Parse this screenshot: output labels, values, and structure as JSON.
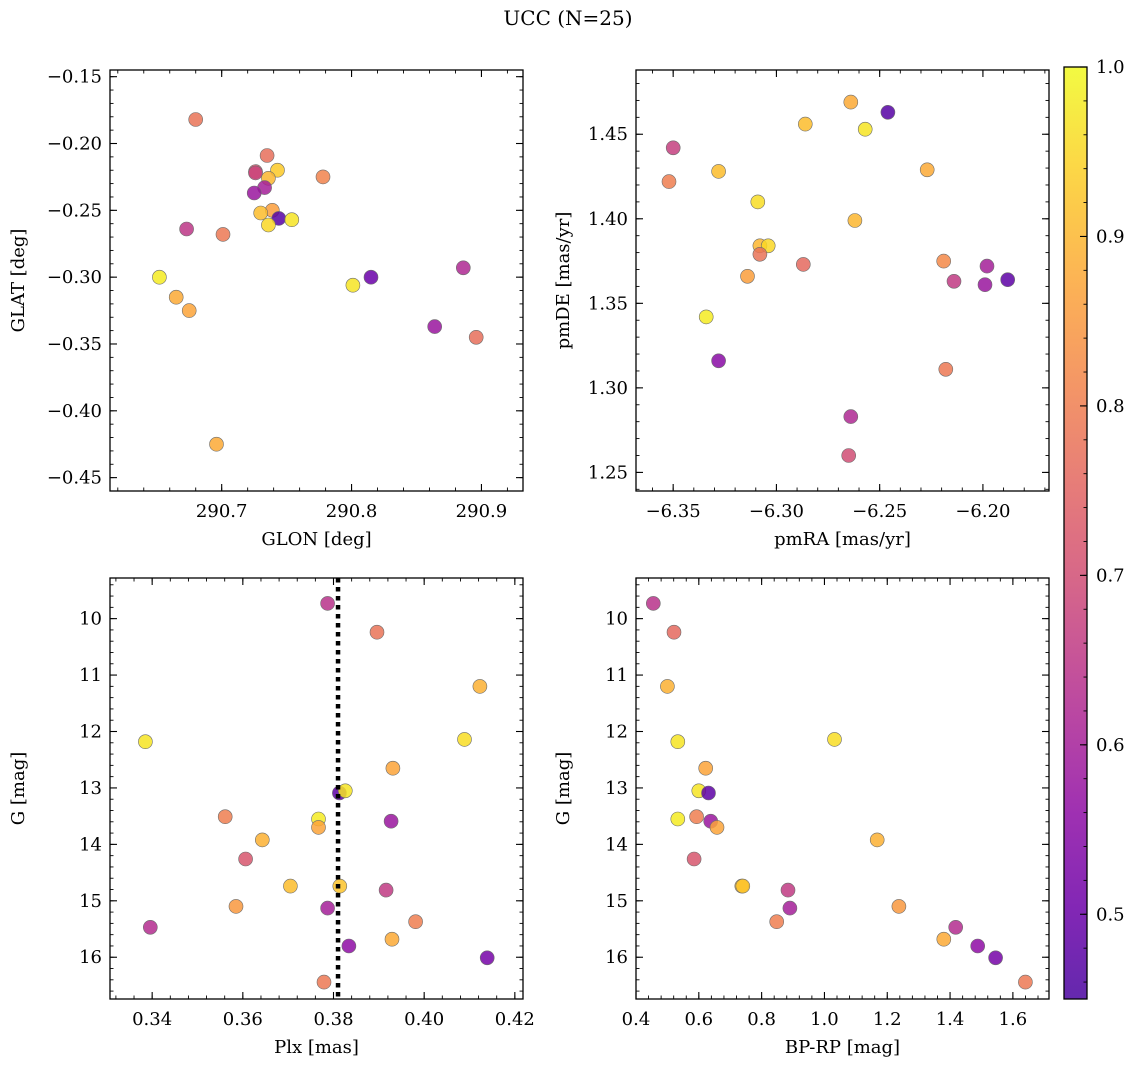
{
  "figure": {
    "title": "UCC (N=25)"
  },
  "colorbar": {
    "cmap": "plasma",
    "min": 0.45,
    "max": 1.0,
    "ticks": [
      0.5,
      0.6,
      0.7,
      0.8,
      0.9,
      1.0
    ],
    "tick_labels": [
      "0.5",
      "0.6",
      "0.7",
      "0.8",
      "0.9",
      "1.0"
    ]
  },
  "chart_data": [
    {
      "type": "scatter",
      "xlabel": "GLON [deg]",
      "ylabel": "GLAT [deg]",
      "xlim": [
        290.614,
        290.932
      ],
      "ylim": [
        -0.46,
        -0.145
      ],
      "y_inverted": false,
      "xticks": [
        290.7,
        290.8,
        290.9
      ],
      "xtick_labels": [
        "290.7",
        "290.8",
        "290.9"
      ],
      "yticks": [
        -0.45,
        -0.4,
        -0.35,
        -0.3,
        -0.25,
        -0.2,
        -0.15
      ],
      "ytick_labels": [
        "−0.45",
        "−0.40",
        "−0.35",
        "−0.30",
        "−0.25",
        "−0.20",
        "−0.15"
      ],
      "points": [
        {
          "x": 290.68,
          "y": -0.182,
          "c": 0.78
        },
        {
          "x": 290.735,
          "y": -0.209,
          "c": 0.77
        },
        {
          "x": 290.726,
          "y": -0.221,
          "c": 0.72
        },
        {
          "x": 290.726,
          "y": -0.222,
          "c": 0.68
        },
        {
          "x": 290.743,
          "y": -0.22,
          "c": 0.93
        },
        {
          "x": 290.778,
          "y": -0.225,
          "c": 0.81
        },
        {
          "x": 290.736,
          "y": -0.226,
          "c": 0.9
        },
        {
          "x": 290.733,
          "y": -0.233,
          "c": 0.6
        },
        {
          "x": 290.725,
          "y": -0.237,
          "c": 0.58
        },
        {
          "x": 290.739,
          "y": -0.25,
          "c": 0.86
        },
        {
          "x": 290.73,
          "y": -0.252,
          "c": 0.91
        },
        {
          "x": 290.744,
          "y": -0.256,
          "c": 0.47
        },
        {
          "x": 290.754,
          "y": -0.257,
          "c": 0.97
        },
        {
          "x": 290.736,
          "y": -0.261,
          "c": 0.95
        },
        {
          "x": 290.673,
          "y": -0.264,
          "c": 0.65
        },
        {
          "x": 290.701,
          "y": -0.268,
          "c": 0.79
        },
        {
          "x": 290.652,
          "y": -0.3,
          "c": 0.98
        },
        {
          "x": 290.815,
          "y": -0.3,
          "c": 0.5
        },
        {
          "x": 290.801,
          "y": -0.306,
          "c": 0.97
        },
        {
          "x": 290.886,
          "y": -0.293,
          "c": 0.62
        },
        {
          "x": 290.665,
          "y": -0.315,
          "c": 0.88
        },
        {
          "x": 290.675,
          "y": -0.325,
          "c": 0.87
        },
        {
          "x": 290.864,
          "y": -0.337,
          "c": 0.58
        },
        {
          "x": 290.896,
          "y": -0.345,
          "c": 0.77
        },
        {
          "x": 290.696,
          "y": -0.425,
          "c": 0.88
        }
      ]
    },
    {
      "type": "scatter",
      "xlabel": "pmRA [mas/yr]",
      "ylabel": "pmDE [mas/yr]",
      "xlim": [
        -6.368,
        -6.168
      ],
      "ylim": [
        1.239,
        1.488
      ],
      "y_inverted": false,
      "xticks": [
        -6.35,
        -6.3,
        -6.25,
        -6.2
      ],
      "xtick_labels": [
        "−6.35",
        "−6.30",
        "−6.25",
        "−6.20"
      ],
      "yticks": [
        1.25,
        1.3,
        1.35,
        1.4,
        1.45
      ],
      "ytick_labels": [
        "1.25",
        "1.30",
        "1.35",
        "1.40",
        "1.45"
      ],
      "points": [
        {
          "x": -6.264,
          "y": 1.469,
          "c": 0.88
        },
        {
          "x": -6.246,
          "y": 1.463,
          "c": 0.47
        },
        {
          "x": -6.286,
          "y": 1.456,
          "c": 0.91
        },
        {
          "x": -6.257,
          "y": 1.453,
          "c": 0.97
        },
        {
          "x": -6.35,
          "y": 1.442,
          "c": 0.67
        },
        {
          "x": -6.352,
          "y": 1.422,
          "c": 0.8
        },
        {
          "x": -6.328,
          "y": 1.428,
          "c": 0.91
        },
        {
          "x": -6.227,
          "y": 1.429,
          "c": 0.88
        },
        {
          "x": -6.309,
          "y": 1.41,
          "c": 0.96
        },
        {
          "x": -6.262,
          "y": 1.399,
          "c": 0.9
        },
        {
          "x": -6.308,
          "y": 1.384,
          "c": 0.9
        },
        {
          "x": -6.304,
          "y": 1.384,
          "c": 0.95
        },
        {
          "x": -6.308,
          "y": 1.379,
          "c": 0.78
        },
        {
          "x": -6.287,
          "y": 1.373,
          "c": 0.76
        },
        {
          "x": -6.219,
          "y": 1.375,
          "c": 0.82
        },
        {
          "x": -6.198,
          "y": 1.372,
          "c": 0.6
        },
        {
          "x": -6.314,
          "y": 1.366,
          "c": 0.86
        },
        {
          "x": -6.214,
          "y": 1.363,
          "c": 0.66
        },
        {
          "x": -6.199,
          "y": 1.361,
          "c": 0.58
        },
        {
          "x": -6.188,
          "y": 1.364,
          "c": 0.48
        },
        {
          "x": -6.334,
          "y": 1.342,
          "c": 0.98
        },
        {
          "x": -6.328,
          "y": 1.316,
          "c": 0.55
        },
        {
          "x": -6.218,
          "y": 1.311,
          "c": 0.79
        },
        {
          "x": -6.264,
          "y": 1.283,
          "c": 0.62
        },
        {
          "x": -6.265,
          "y": 1.26,
          "c": 0.7
        }
      ]
    },
    {
      "type": "scatter",
      "xlabel": "Plx [mas]",
      "ylabel": "G [mag]",
      "xlim": [
        0.3307,
        0.4218
      ],
      "ylim": [
        9.28,
        16.74
      ],
      "y_inverted": true,
      "vline": 0.381,
      "xticks": [
        0.34,
        0.36,
        0.38,
        0.4,
        0.42
      ],
      "xtick_labels": [
        "0.34",
        "0.36",
        "0.38",
        "0.40",
        "0.42"
      ],
      "yticks": [
        10,
        11,
        12,
        13,
        14,
        15,
        16
      ],
      "ytick_labels": [
        "10",
        "11",
        "12",
        "13",
        "14",
        "15",
        "16"
      ],
      "points": [
        {
          "x": 0.3787,
          "y": 9.73,
          "c": 0.64
        },
        {
          "x": 0.3896,
          "y": 10.24,
          "c": 0.78
        },
        {
          "x": 0.4123,
          "y": 11.2,
          "c": 0.89
        },
        {
          "x": 0.3385,
          "y": 12.18,
          "c": 0.97
        },
        {
          "x": 0.4089,
          "y": 12.14,
          "c": 0.96
        },
        {
          "x": 0.3931,
          "y": 12.65,
          "c": 0.87
        },
        {
          "x": 0.3813,
          "y": 13.09,
          "c": 0.48
        },
        {
          "x": 0.3826,
          "y": 13.05,
          "c": 0.97
        },
        {
          "x": 0.3561,
          "y": 13.51,
          "c": 0.8
        },
        {
          "x": 0.3767,
          "y": 13.55,
          "c": 0.98
        },
        {
          "x": 0.3927,
          "y": 13.59,
          "c": 0.58
        },
        {
          "x": 0.3767,
          "y": 13.7,
          "c": 0.87
        },
        {
          "x": 0.3643,
          "y": 13.92,
          "c": 0.89
        },
        {
          "x": 0.3606,
          "y": 14.26,
          "c": 0.72
        },
        {
          "x": 0.3705,
          "y": 14.74,
          "c": 0.91
        },
        {
          "x": 0.3814,
          "y": 14.74,
          "c": 0.92
        },
        {
          "x": 0.3916,
          "y": 14.81,
          "c": 0.66
        },
        {
          "x": 0.3585,
          "y": 15.1,
          "c": 0.85
        },
        {
          "x": 0.3787,
          "y": 15.13,
          "c": 0.6
        },
        {
          "x": 0.3981,
          "y": 15.37,
          "c": 0.8
        },
        {
          "x": 0.3396,
          "y": 15.47,
          "c": 0.63
        },
        {
          "x": 0.3929,
          "y": 15.68,
          "c": 0.88
        },
        {
          "x": 0.3834,
          "y": 15.8,
          "c": 0.56
        },
        {
          "x": 0.4139,
          "y": 16.01,
          "c": 0.52
        },
        {
          "x": 0.3779,
          "y": 16.44,
          "c": 0.79
        }
      ]
    },
    {
      "type": "scatter",
      "xlabel": "BP-RP [mag]",
      "ylabel": "G [mag]",
      "xlim": [
        0.4,
        1.715
      ],
      "ylim": [
        9.28,
        16.74
      ],
      "y_inverted": true,
      "xticks": [
        0.4,
        0.6,
        0.8,
        1.0,
        1.2,
        1.4,
        1.6
      ],
      "xtick_labels": [
        "0.4",
        "0.6",
        "0.8",
        "1.0",
        "1.2",
        "1.4",
        "1.6"
      ],
      "yticks": [
        10,
        11,
        12,
        13,
        14,
        15,
        16
      ],
      "ytick_labels": [
        "10",
        "11",
        "12",
        "13",
        "14",
        "15",
        "16"
      ],
      "points": [
        {
          "x": 0.455,
          "y": 9.73,
          "c": 0.64
        },
        {
          "x": 0.521,
          "y": 10.24,
          "c": 0.76
        },
        {
          "x": 0.5,
          "y": 11.2,
          "c": 0.89
        },
        {
          "x": 0.533,
          "y": 12.18,
          "c": 0.97
        },
        {
          "x": 1.032,
          "y": 12.14,
          "c": 0.96
        },
        {
          "x": 0.622,
          "y": 12.65,
          "c": 0.87
        },
        {
          "x": 0.6,
          "y": 13.05,
          "c": 0.97
        },
        {
          "x": 0.631,
          "y": 13.09,
          "c": 0.48
        },
        {
          "x": 0.533,
          "y": 13.55,
          "c": 0.98
        },
        {
          "x": 0.593,
          "y": 13.51,
          "c": 0.8
        },
        {
          "x": 0.638,
          "y": 13.59,
          "c": 0.58
        },
        {
          "x": 0.658,
          "y": 13.7,
          "c": 0.87
        },
        {
          "x": 1.168,
          "y": 13.92,
          "c": 0.89
        },
        {
          "x": 0.585,
          "y": 14.26,
          "c": 0.72
        },
        {
          "x": 0.737,
          "y": 14.74,
          "c": 0.91
        },
        {
          "x": 0.74,
          "y": 14.74,
          "c": 0.92
        },
        {
          "x": 0.884,
          "y": 14.81,
          "c": 0.66
        },
        {
          "x": 1.237,
          "y": 15.1,
          "c": 0.85
        },
        {
          "x": 0.89,
          "y": 15.13,
          "c": 0.6
        },
        {
          "x": 0.848,
          "y": 15.37,
          "c": 0.8
        },
        {
          "x": 1.418,
          "y": 15.47,
          "c": 0.63
        },
        {
          "x": 1.38,
          "y": 15.68,
          "c": 0.88
        },
        {
          "x": 1.488,
          "y": 15.8,
          "c": 0.56
        },
        {
          "x": 1.545,
          "y": 16.01,
          "c": 0.52
        },
        {
          "x": 1.64,
          "y": 16.44,
          "c": 0.79
        }
      ]
    }
  ]
}
